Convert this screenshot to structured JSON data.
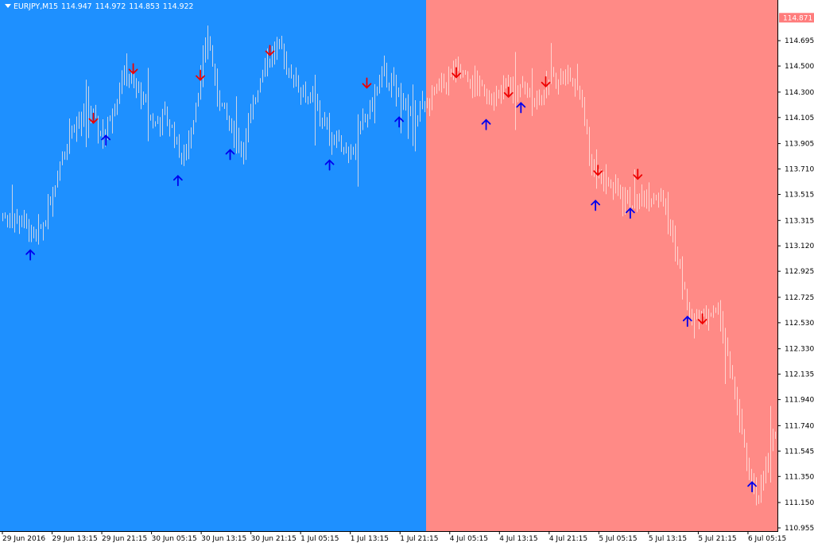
{
  "header": {
    "symbol_timeframe": "EURJPY,M15",
    "open": "114.947",
    "high": "114.972",
    "low": "114.853",
    "close": "114.922"
  },
  "colors": {
    "left_background": "#1e90ff",
    "right_background": "#ff8a86",
    "bar_on_blue": "#c9d3e6",
    "bar_on_red": "#ffd4d0",
    "axis_text": "#000000",
    "current_price_label": "#ff7c7c",
    "up_arrow": "#0000ee",
    "down_arrow": "#ee0000"
  },
  "chart_data": {
    "type": "ohlc",
    "symbol": "EURJPY",
    "timeframe": "M15",
    "ylim": [
      110.955,
      114.89
    ],
    "current_price": "114.871",
    "y_ticks": [
      "114.695",
      "114.500",
      "114.300",
      "114.105",
      "113.905",
      "113.710",
      "113.515",
      "113.315",
      "113.120",
      "112.925",
      "112.725",
      "112.530",
      "112.330",
      "112.135",
      "111.940",
      "111.740",
      "111.545",
      "111.350",
      "111.150",
      "110.955"
    ],
    "x_ticks": [
      "29 Jun 2016",
      "29 Jun 13:15",
      "29 Jun 21:15",
      "30 Jun 05:15",
      "30 Jun 13:15",
      "30 Jun 21:15",
      "1 Jul 05:15",
      "1 Jul 13:15",
      "1 Jul 21:15",
      "4 Jul 05:15",
      "4 Jul 13:15",
      "4 Jul 21:15",
      "5 Jul 05:15",
      "5 Jul 13:15",
      "5 Jul 21:15",
      "6 Jul 05:15"
    ],
    "background_split_x_tick": "1 Jul 21:15",
    "price_path": [
      {
        "x": 0,
        "y": 113.35
      },
      {
        "x": 0.4,
        "y": 113.3
      },
      {
        "x": 0.6,
        "y": 113.15
      },
      {
        "x": 0.8,
        "y": 113.3
      },
      {
        "x": 1.3,
        "y": 114.0
      },
      {
        "x": 1.7,
        "y": 114.15
      },
      {
        "x": 2.0,
        "y": 113.95
      },
      {
        "x": 2.4,
        "y": 114.45
      },
      {
        "x": 2.7,
        "y": 114.3
      },
      {
        "x": 3.0,
        "y": 114.05
      },
      {
        "x": 3.3,
        "y": 114.1
      },
      {
        "x": 3.6,
        "y": 113.75
      },
      {
        "x": 3.9,
        "y": 114.3
      },
      {
        "x": 4.1,
        "y": 114.75
      },
      {
        "x": 4.25,
        "y": 114.35
      },
      {
        "x": 4.5,
        "y": 114.05
      },
      {
        "x": 4.8,
        "y": 113.85
      },
      {
        "x": 5.2,
        "y": 114.5
      },
      {
        "x": 5.5,
        "y": 114.65
      },
      {
        "x": 5.9,
        "y": 114.35
      },
      {
        "x": 6.2,
        "y": 114.2
      },
      {
        "x": 6.6,
        "y": 113.95
      },
      {
        "x": 7.0,
        "y": 113.85
      },
      {
        "x": 7.4,
        "y": 114.2
      },
      {
        "x": 7.6,
        "y": 114.45
      },
      {
        "x": 7.9,
        "y": 114.3
      },
      {
        "x": 8.2,
        "y": 114.1
      },
      {
        "x": 8.5,
        "y": 114.2
      },
      {
        "x": 8.8,
        "y": 114.35
      },
      {
        "x": 9.1,
        "y": 114.45
      },
      {
        "x": 9.5,
        "y": 114.35
      },
      {
        "x": 9.9,
        "y": 114.25
      },
      {
        "x": 10.2,
        "y": 114.35
      },
      {
        "x": 10.5,
        "y": 114.3
      },
      {
        "x": 10.8,
        "y": 114.25
      },
      {
        "x": 11.0,
        "y": 114.4
      },
      {
        "x": 11.3,
        "y": 114.45
      },
      {
        "x": 11.6,
        "y": 114.3
      },
      {
        "x": 11.8,
        "y": 113.75
      },
      {
        "x": 12.0,
        "y": 113.65
      },
      {
        "x": 12.3,
        "y": 113.55
      },
      {
        "x": 12.6,
        "y": 113.45
      },
      {
        "x": 12.9,
        "y": 113.5
      },
      {
        "x": 13.2,
        "y": 113.55
      },
      {
        "x": 13.5,
        "y": 113.1
      },
      {
        "x": 13.8,
        "y": 112.55
      },
      {
        "x": 14.1,
        "y": 112.6
      },
      {
        "x": 14.4,
        "y": 112.6
      },
      {
        "x": 14.6,
        "y": 112.15
      },
      {
        "x": 14.8,
        "y": 111.75
      },
      {
        "x": 15.0,
        "y": 111.3
      },
      {
        "x": 15.2,
        "y": 111.2
      },
      {
        "x": 15.5,
        "y": 111.7
      },
      {
        "x": 15.7,
        "y": 111.9
      }
    ],
    "signals": [
      {
        "type": "up",
        "x": 0.53,
        "price": 113.05
      },
      {
        "type": "down",
        "x": 1.8,
        "price": 114.1
      },
      {
        "type": "up",
        "x": 2.05,
        "price": 113.93
      },
      {
        "type": "down",
        "x": 2.6,
        "price": 114.48
      },
      {
        "type": "up",
        "x": 3.5,
        "price": 113.62
      },
      {
        "type": "down",
        "x": 3.95,
        "price": 114.43
      },
      {
        "type": "up",
        "x": 4.55,
        "price": 113.82
      },
      {
        "type": "down",
        "x": 5.35,
        "price": 114.62
      },
      {
        "type": "down",
        "x": 7.3,
        "price": 114.37
      },
      {
        "type": "up",
        "x": 6.55,
        "price": 113.74
      },
      {
        "type": "up",
        "x": 7.95,
        "price": 114.07
      },
      {
        "type": "down",
        "x": 9.1,
        "price": 114.45
      },
      {
        "type": "up",
        "x": 9.7,
        "price": 114.05
      },
      {
        "type": "down",
        "x": 10.15,
        "price": 114.3
      },
      {
        "type": "up",
        "x": 10.4,
        "price": 114.18
      },
      {
        "type": "down",
        "x": 10.9,
        "price": 114.38
      },
      {
        "type": "down",
        "x": 11.95,
        "price": 113.7
      },
      {
        "type": "up",
        "x": 11.9,
        "price": 113.43
      },
      {
        "type": "up",
        "x": 12.6,
        "price": 113.37
      },
      {
        "type": "down",
        "x": 12.75,
        "price": 113.67
      },
      {
        "type": "up",
        "x": 13.75,
        "price": 112.54
      },
      {
        "type": "down",
        "x": 14.05,
        "price": 112.56
      },
      {
        "type": "up",
        "x": 15.05,
        "price": 111.27
      }
    ]
  }
}
